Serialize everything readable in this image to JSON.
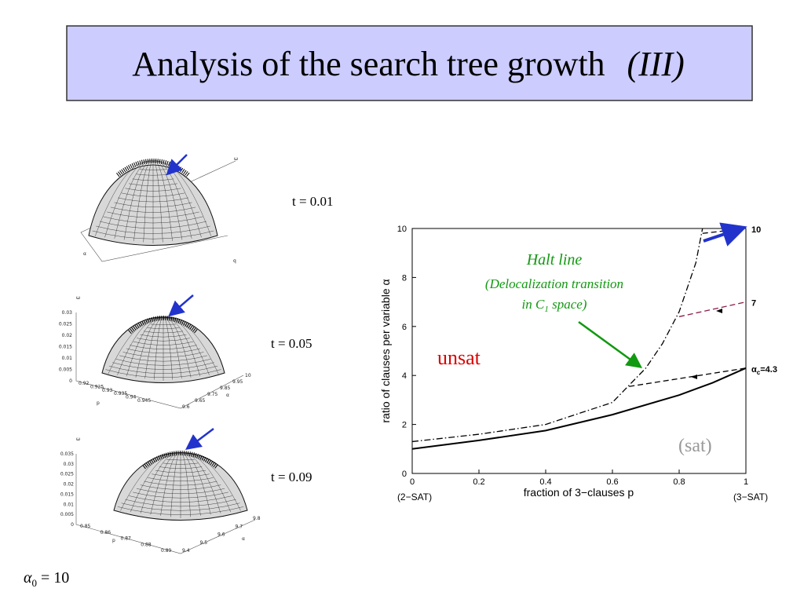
{
  "title": {
    "text": "Analysis of the search tree growth",
    "emphasis": "(III)"
  },
  "panels": [
    {
      "label": "t = 0.01",
      "z_label": "ω",
      "x_label": "α",
      "y_label": "q"
    },
    {
      "label": "t = 0.05",
      "z_label": "ω",
      "z_ticks": [
        "0",
        "0.005",
        "0.01",
        "0.015",
        "0.02",
        "0.025",
        "0.03"
      ],
      "x_label": "p",
      "x_ticks": [
        "0.92",
        "0.925",
        "0.93",
        "0.935",
        "0.94",
        "0.945"
      ],
      "y_label": "α",
      "y_ticks": [
        "9.6",
        "9.65",
        "9.75",
        "9.85",
        "9.95",
        "10"
      ]
    },
    {
      "label": "t = 0.09",
      "z_label": "ω",
      "z_ticks": [
        "0",
        "0.005",
        "0.01",
        "0.015",
        "0.02",
        "0.025",
        "0.03",
        "0.035"
      ],
      "x_label": "p",
      "x_ticks": [
        "0.85",
        "0.86",
        "0.87",
        "0.88",
        "0.89"
      ],
      "y_label": "α",
      "y_ticks": [
        "9.4",
        "9.5",
        "9.6",
        "9.7",
        "9.8"
      ]
    }
  ],
  "footnote": {
    "symbol": "α",
    "sub": "0",
    "rest": " = 10"
  },
  "chart_data": {
    "type": "line",
    "xlabel": "fraction of 3−clauses  p",
    "ylabel": "ratio of clauses per variable  α",
    "xlim": [
      0,
      1
    ],
    "ylim": [
      0,
      10
    ],
    "xticks": [
      0,
      0.2,
      0.4,
      0.6,
      0.8,
      1
    ],
    "yticks": [
      0,
      2,
      4,
      6,
      8,
      10
    ],
    "x_end_labels": [
      "(2−SAT)",
      "(3−SAT)"
    ],
    "series": [
      {
        "color": "#000000",
        "style": "solid",
        "x": [
          0,
          0.2,
          0.4,
          0.6,
          0.8,
          0.9,
          1
        ],
        "values": [
          1.0,
          1.35,
          1.75,
          2.4,
          3.2,
          3.7,
          4.3
        ]
      },
      {
        "color": "#000000",
        "style": "dashdot",
        "x": [
          0,
          0.2,
          0.4,
          0.6,
          0.65,
          0.7,
          0.75,
          0.8,
          0.85,
          0.87
        ],
        "values": [
          1.3,
          1.6,
          2.0,
          2.9,
          3.6,
          4.3,
          5.3,
          6.6,
          8.6,
          10
        ]
      },
      {
        "color": "#000000",
        "style": "dashed",
        "x": [
          0.65,
          1
        ],
        "values": [
          3.55,
          4.3
        ]
      },
      {
        "color": "#8b1a4a",
        "style": "dashed",
        "x": [
          0.8,
          1
        ],
        "values": [
          6.4,
          7
        ]
      },
      {
        "color": "#000000",
        "style": "dashed",
        "x": [
          0.87,
          1
        ],
        "values": [
          9.8,
          10
        ]
      }
    ],
    "right_labels": [
      {
        "text": "10",
        "y": 10
      },
      {
        "text": "7",
        "y": 7
      },
      {
        "text": "α",
        "sub": "c",
        "rest": "=4.3",
        "y": 4.3
      }
    ],
    "halt_line": {
      "title": "Halt line",
      "line1": "(Delocalization transition",
      "line2": "in C",
      "line2_sub": "1",
      "line2_rest": " space)"
    },
    "unsat": "unsat",
    "sat": "(sat)"
  }
}
